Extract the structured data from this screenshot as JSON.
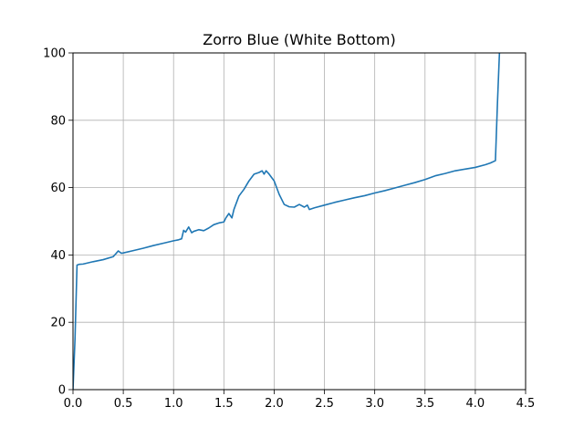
{
  "chart_data": {
    "type": "line",
    "title": "Zorro Blue (White Bottom)",
    "xlabel": "",
    "ylabel": "",
    "xlim": [
      0,
      4.5
    ],
    "ylim": [
      0,
      100
    ],
    "grid": true,
    "xticks": [
      0.0,
      0.5,
      1.0,
      1.5,
      2.0,
      2.5,
      3.0,
      3.5,
      4.0,
      4.5
    ],
    "xtick_labels": [
      "0.0",
      "0.5",
      "1.0",
      "1.5",
      "2.0",
      "2.5",
      "3.0",
      "3.5",
      "4.0",
      "4.5"
    ],
    "yticks": [
      0,
      20,
      40,
      60,
      80,
      100
    ],
    "ytick_labels": [
      "0",
      "20",
      "40",
      "60",
      "80",
      "100"
    ],
    "series": [
      {
        "color": "#1f77b4",
        "x": [
          0.0,
          0.02,
          0.04,
          0.06,
          0.1,
          0.2,
          0.3,
          0.4,
          0.43,
          0.45,
          0.48,
          0.5,
          0.6,
          0.7,
          0.8,
          0.9,
          1.0,
          1.05,
          1.08,
          1.1,
          1.12,
          1.15,
          1.18,
          1.2,
          1.25,
          1.3,
          1.35,
          1.4,
          1.45,
          1.5,
          1.52,
          1.55,
          1.58,
          1.6,
          1.65,
          1.7,
          1.75,
          1.8,
          1.85,
          1.88,
          1.9,
          1.92,
          1.95,
          2.0,
          2.05,
          2.1,
          2.15,
          2.2,
          2.25,
          2.3,
          2.33,
          2.35,
          2.4,
          2.5,
          2.6,
          2.7,
          2.8,
          2.9,
          3.0,
          3.1,
          3.2,
          3.3,
          3.4,
          3.5,
          3.6,
          3.7,
          3.8,
          3.9,
          4.0,
          4.1,
          4.15,
          4.2,
          4.22,
          4.24,
          4.25
        ],
        "y": [
          0,
          15,
          37,
          37.2,
          37.3,
          38,
          38.6,
          39.5,
          40.5,
          41.2,
          40.5,
          40.6,
          41.3,
          42,
          42.8,
          43.5,
          44.2,
          44.5,
          44.8,
          47.3,
          46.8,
          48.3,
          46.6,
          47,
          47.5,
          47.2,
          48,
          49,
          49.5,
          49.8,
          51,
          52.3,
          51,
          53.5,
          57.5,
          59.5,
          62,
          64,
          64.5,
          65,
          64,
          65,
          64,
          62,
          58,
          55,
          54.3,
          54.2,
          55,
          54.2,
          54.8,
          53.5,
          54,
          54.8,
          55.6,
          56.3,
          57,
          57.6,
          58.4,
          59.1,
          59.9,
          60.7,
          61.5,
          62.4,
          63.5,
          64.2,
          65,
          65.5,
          66,
          66.8,
          67.3,
          68,
          85,
          100,
          102
        ]
      }
    ]
  }
}
